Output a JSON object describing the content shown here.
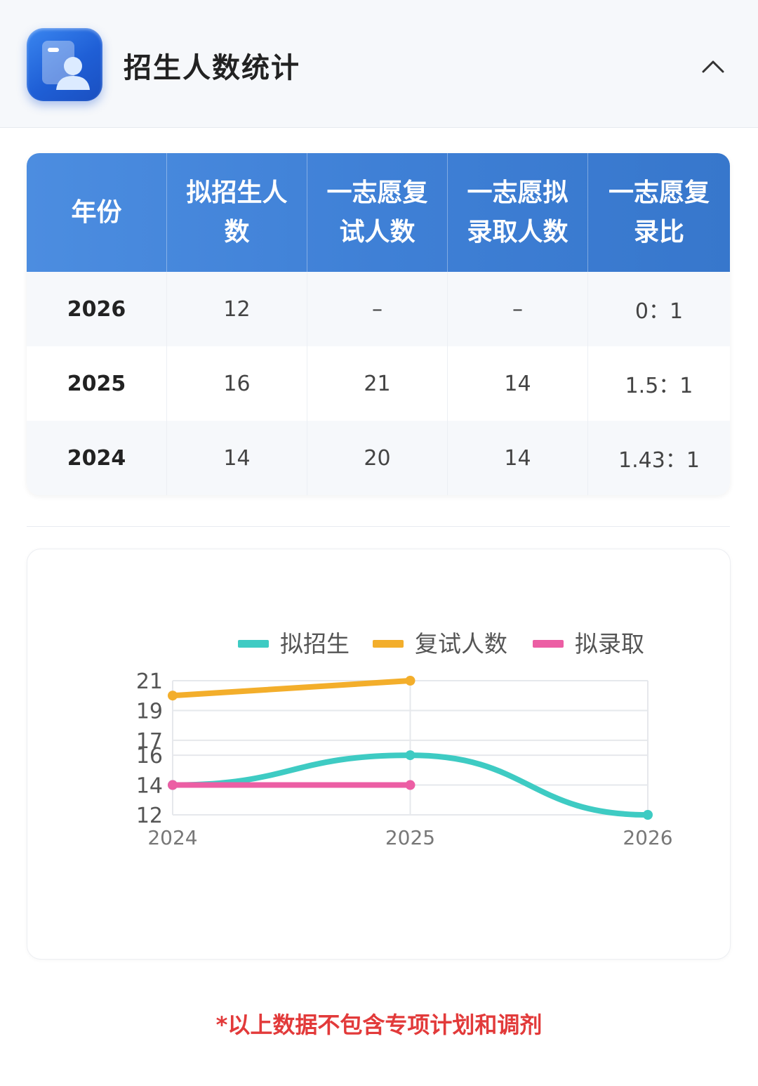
{
  "header": {
    "title": "招生人数统计",
    "logo_icon": "student-id-card-icon",
    "collapse_icon": "chevron-up-icon"
  },
  "table": {
    "headers": [
      "年份",
      "拟招生人数",
      "一志愿复试人数",
      "一志愿拟录取人数",
      "一志愿复录比"
    ],
    "rows": [
      [
        "2026",
        "12",
        "–",
        "–",
        "0：1"
      ],
      [
        "2025",
        "16",
        "21",
        "14",
        "1.5：1"
      ],
      [
        "2024",
        "14",
        "20",
        "14",
        "1.43：1"
      ]
    ]
  },
  "chart_data": {
    "type": "line",
    "x": [
      "2024",
      "2025",
      "2026"
    ],
    "series": [
      {
        "name": "拟招生",
        "values": [
          14,
          16,
          12
        ],
        "color": "#3ecbc3",
        "smooth": true
      },
      {
        "name": "复试人数",
        "values": [
          20,
          21,
          null
        ],
        "color": "#f3ae2b",
        "smooth": false
      },
      {
        "name": "拟录取",
        "values": [
          14,
          14,
          null
        ],
        "color": "#ec5ea4",
        "smooth": false
      }
    ],
    "y_ticks": [
      12,
      14,
      16,
      17,
      19,
      21
    ],
    "ylim": [
      12,
      21
    ],
    "grid": true,
    "legend_position": "top"
  },
  "footnote": "*以上数据不包含专项计划和调剂"
}
